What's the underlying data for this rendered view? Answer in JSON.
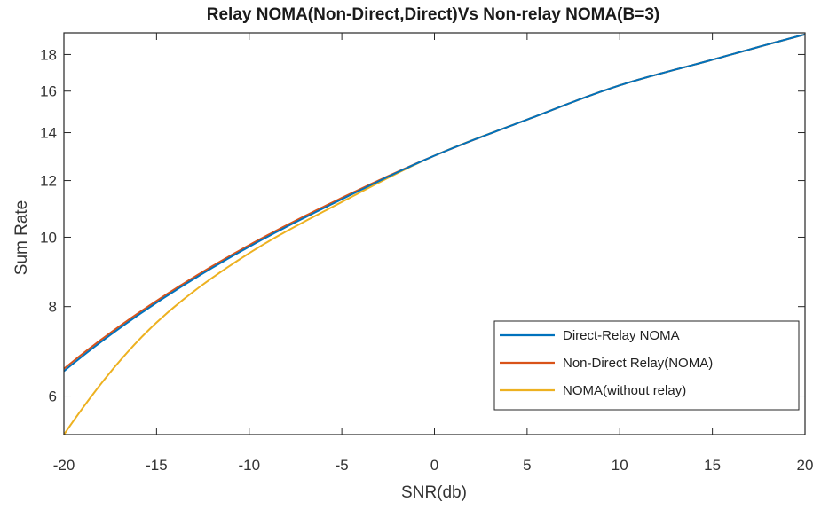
{
  "chart_data": {
    "type": "line",
    "title": "Relay NOMA(Non-Direct,Direct)Vs Non-relay NOMA(B=3)",
    "xlabel": "SNR(db)",
    "ylabel": "Sum Rate",
    "xlim": [
      -20,
      20
    ],
    "ylim": [
      5.3,
      19.3
    ],
    "y_scale": "log",
    "xticks": [
      -20,
      -15,
      -10,
      -5,
      0,
      5,
      10,
      15,
      20
    ],
    "xtick_labels": [
      "-20",
      "-15",
      "-10",
      "-5",
      "0",
      "5",
      "10",
      "15",
      "20"
    ],
    "yticks": [
      6,
      8,
      10,
      12,
      14,
      16,
      18
    ],
    "ytick_labels": [
      "6",
      "8",
      "10",
      "12",
      "14",
      "16",
      "18"
    ],
    "grid": false,
    "legend_position": "bottom-right",
    "x": [
      -20,
      -15,
      -10,
      -5,
      0,
      5,
      10,
      15,
      20
    ],
    "series": [
      {
        "name": "Direct-Relay NOMA",
        "color": "#0072BD",
        "values": [
          6.5,
          8.1,
          9.7,
          11.3,
          13.0,
          14.6,
          16.3,
          17.7,
          19.2
        ]
      },
      {
        "name": "Non-Direct Relay(NOMA)",
        "color": "#D95319",
        "values": [
          6.55,
          8.15,
          9.75,
          11.35,
          13.0,
          14.6,
          16.3,
          17.7,
          19.2
        ]
      },
      {
        "name": "NOMA(without relay)",
        "color": "#EDB120",
        "values": [
          5.3,
          7.6,
          9.5,
          11.2,
          13.0,
          14.6,
          16.3,
          17.7,
          19.2
        ]
      }
    ]
  }
}
